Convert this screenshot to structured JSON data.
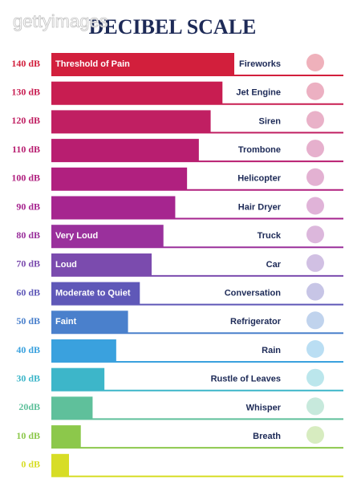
{
  "chart_data": {
    "type": "bar",
    "orientation": "horizontal",
    "title": "DECIBEL SCALE",
    "watermark": "gettyimages",
    "categories": [
      "Fireworks",
      "Jet Engine",
      "Siren",
      "Trombone",
      "Helicopter",
      "Hair Dryer",
      "Truck",
      "Car",
      "Conversation",
      "Refrigerator",
      "Rain",
      "Rustle of Leaves",
      "Whisper",
      "Breath",
      null
    ],
    "values": [
      140,
      130,
      120,
      110,
      100,
      90,
      80,
      70,
      60,
      50,
      40,
      30,
      20,
      10,
      0
    ],
    "value_labels": [
      "140 dB",
      "130 dB",
      "120 dB",
      "110 dB",
      "100 dB",
      "90 dB",
      "80 dB",
      "70 dB",
      "60 dB",
      "50 dB",
      "40 dB",
      "30 dB",
      "20dB",
      "10 dB",
      "0 dB"
    ],
    "bar_labels": [
      "Threshold of Pain",
      null,
      null,
      null,
      null,
      null,
      "Very Loud",
      "Loud",
      "Moderate to Quiet",
      "Faint",
      null,
      null,
      null,
      null,
      null
    ],
    "colors": [
      "#d21f3c",
      "#c81d51",
      "#c01f62",
      "#b81e70",
      "#b0207f",
      "#a6258f",
      "#9a309c",
      "#7b4bae",
      "#5f58b8",
      "#4a80cc",
      "#3aa1de",
      "#3db6c9",
      "#5fc09b",
      "#8cc84b",
      "#d7dd26"
    ]
  }
}
